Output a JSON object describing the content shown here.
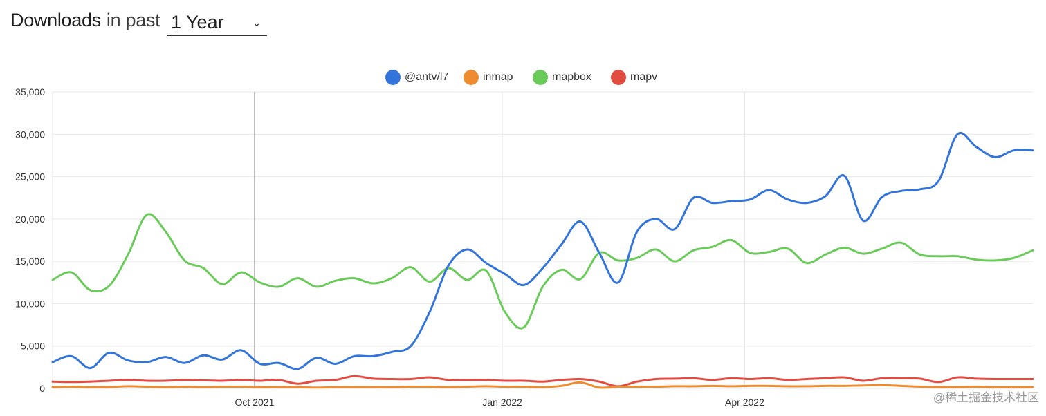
{
  "header": {
    "title_strong": "Downloads",
    "title_light": "in past",
    "period": "1 Year"
  },
  "watermark": "@稀土掘金技术社区",
  "chart_data": {
    "type": "line",
    "x": [
      "2021-07-18",
      "2021-07-25",
      "2021-08-01",
      "2021-08-08",
      "2021-08-15",
      "2021-08-22",
      "2021-08-29",
      "2021-09-05",
      "2021-09-12",
      "2021-09-19",
      "2021-09-26",
      "2021-10-03",
      "2021-10-10",
      "2021-10-17",
      "2021-10-24",
      "2021-10-31",
      "2021-11-07",
      "2021-11-14",
      "2021-11-21",
      "2021-11-28",
      "2021-12-05",
      "2021-12-12",
      "2021-12-19",
      "2021-12-26",
      "2022-01-02",
      "2022-01-09",
      "2022-01-16",
      "2022-01-23",
      "2022-01-30",
      "2022-02-06",
      "2022-02-13",
      "2022-02-20",
      "2022-02-27",
      "2022-03-06",
      "2022-03-13",
      "2022-03-20",
      "2022-03-27",
      "2022-04-03",
      "2022-04-10",
      "2022-04-17",
      "2022-04-24",
      "2022-05-01",
      "2022-05-08",
      "2022-05-15",
      "2022-05-22",
      "2022-05-29",
      "2022-06-05",
      "2022-06-12",
      "2022-06-19",
      "2022-06-26",
      "2022-07-03",
      "2022-07-10",
      "2022-07-17"
    ],
    "xticks": [
      {
        "date": "2021-10-01",
        "label": "Oct 2021"
      },
      {
        "date": "2022-01-01",
        "label": "Jan 2022"
      },
      {
        "date": "2022-04-01",
        "label": "Apr 2022"
      }
    ],
    "hover_line": "2021-10-01",
    "ylim": [
      0,
      35000
    ],
    "yticks": [
      {
        "value": 0,
        "label": "0"
      },
      {
        "value": 5000,
        "label": "5,000"
      },
      {
        "value": 10000,
        "label": "10,000"
      },
      {
        "value": 15000,
        "label": "15,000"
      },
      {
        "value": 20000,
        "label": "20,000"
      },
      {
        "value": 25000,
        "label": "25,000"
      },
      {
        "value": 30000,
        "label": "30,000"
      },
      {
        "value": 35000,
        "label": "35,000"
      }
    ],
    "grid": true,
    "legend_position": "top-center",
    "series": [
      {
        "name": "@antv/l7",
        "color": "#3274d9",
        "values": [
          3100,
          3800,
          2400,
          4200,
          3300,
          3100,
          3700,
          3000,
          3900,
          3400,
          4500,
          2900,
          3000,
          2300,
          3600,
          2900,
          3800,
          3800,
          4300,
          5000,
          9000,
          14500,
          16400,
          14800,
          13500,
          12200,
          14200,
          17000,
          19700,
          16000,
          12500,
          18500,
          20000,
          18800,
          22500,
          21900,
          22100,
          22300,
          23400,
          22300,
          21900,
          22700,
          25100,
          19800,
          22600,
          23300,
          23500,
          24500,
          30000,
          28500,
          27300,
          28100,
          28100
        ]
      },
      {
        "name": "inmap",
        "color": "#f08c30",
        "values": [
          150,
          200,
          150,
          150,
          250,
          200,
          150,
          200,
          150,
          200,
          200,
          150,
          150,
          150,
          100,
          150,
          150,
          150,
          150,
          200,
          200,
          150,
          200,
          250,
          200,
          200,
          150,
          300,
          700,
          100,
          200,
          200,
          200,
          250,
          250,
          300,
          250,
          300,
          300,
          250,
          250,
          300,
          300,
          350,
          400,
          300,
          200,
          150,
          150,
          200,
          150,
          150,
          150
        ]
      },
      {
        "name": "mapbox",
        "color": "#6bcb5a",
        "values": [
          12800,
          13700,
          11600,
          12100,
          15800,
          20500,
          18500,
          15100,
          14200,
          12300,
          13700,
          12500,
          12000,
          13000,
          12000,
          12700,
          13000,
          12400,
          13000,
          14300,
          12600,
          14200,
          12800,
          13900,
          9000,
          7200,
          12000,
          14000,
          12900,
          16000,
          15100,
          15400,
          16400,
          15000,
          16300,
          16700,
          17500,
          16000,
          16100,
          16500,
          14800,
          15800,
          16600,
          15900,
          16500,
          17200,
          15800,
          15600,
          15600,
          15200,
          15100,
          15400,
          16300
        ]
      },
      {
        "name": "mapv",
        "color": "#e24d42",
        "values": [
          800,
          750,
          800,
          900,
          1000,
          900,
          900,
          1000,
          950,
          900,
          1000,
          900,
          1000,
          550,
          900,
          1000,
          1450,
          1150,
          1100,
          1100,
          1300,
          1000,
          1000,
          1000,
          900,
          900,
          800,
          1000,
          1100,
          800,
          250,
          800,
          1100,
          1150,
          1200,
          1000,
          1200,
          1100,
          1200,
          1000,
          1100,
          1200,
          1300,
          900,
          1200,
          1200,
          1150,
          750,
          1300,
          1150,
          1100,
          1100,
          1100
        ]
      }
    ]
  }
}
